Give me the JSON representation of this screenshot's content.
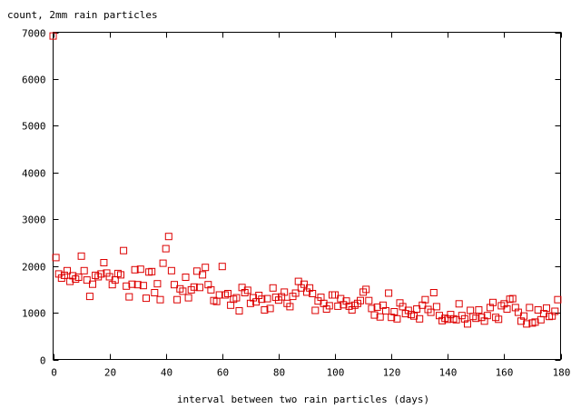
{
  "chart_data": {
    "type": "scatter",
    "title": "",
    "ylabel": "count, 2mm rain particles",
    "xlabel": "interval between two rain particles (days)",
    "xlim": [
      0,
      180
    ],
    "ylim": [
      0,
      7000
    ],
    "xticks": [
      0,
      20,
      40,
      60,
      80,
      100,
      120,
      140,
      160,
      180
    ],
    "yticks": [
      0,
      1000,
      2000,
      3000,
      4000,
      5000,
      6000,
      7000
    ],
    "grid": false,
    "marker": "open-square",
    "color": "#dd0000",
    "series": [
      {
        "points": [
          [
            0,
            6920
          ],
          [
            1,
            2180
          ],
          [
            2,
            1830
          ],
          [
            3,
            1740
          ],
          [
            4,
            1800
          ],
          [
            5,
            1900
          ],
          [
            6,
            1670
          ],
          [
            7,
            1790
          ],
          [
            8,
            1720
          ],
          [
            9,
            1760
          ],
          [
            10,
            2210
          ],
          [
            11,
            1900
          ],
          [
            12,
            1700
          ],
          [
            13,
            1350
          ],
          [
            14,
            1610
          ],
          [
            15,
            1800
          ],
          [
            16,
            1770
          ],
          [
            17,
            1830
          ],
          [
            18,
            2070
          ],
          [
            19,
            1850
          ],
          [
            20,
            1770
          ],
          [
            21,
            1600
          ],
          [
            22,
            1700
          ],
          [
            23,
            1840
          ],
          [
            24,
            1810
          ],
          [
            25,
            2330
          ],
          [
            26,
            1570
          ],
          [
            27,
            1340
          ],
          [
            28,
            1610
          ],
          [
            29,
            1920
          ],
          [
            30,
            1600
          ],
          [
            31,
            1930
          ],
          [
            32,
            1580
          ],
          [
            33,
            1310
          ],
          [
            34,
            1870
          ],
          [
            35,
            1880
          ],
          [
            36,
            1430
          ],
          [
            37,
            1620
          ],
          [
            38,
            1280
          ],
          [
            39,
            2060
          ],
          [
            40,
            2370
          ],
          [
            41,
            2630
          ],
          [
            42,
            1900
          ],
          [
            43,
            1600
          ],
          [
            44,
            1280
          ],
          [
            45,
            1510
          ],
          [
            46,
            1460
          ],
          [
            47,
            1760
          ],
          [
            48,
            1320
          ],
          [
            49,
            1490
          ],
          [
            50,
            1550
          ],
          [
            51,
            1890
          ],
          [
            52,
            1540
          ],
          [
            53,
            1810
          ],
          [
            54,
            1970
          ],
          [
            55,
            1600
          ],
          [
            56,
            1490
          ],
          [
            57,
            1260
          ],
          [
            58,
            1240
          ],
          [
            59,
            1380
          ],
          [
            60,
            1990
          ],
          [
            61,
            1380
          ],
          [
            62,
            1410
          ],
          [
            63,
            1160
          ],
          [
            64,
            1290
          ],
          [
            65,
            1320
          ],
          [
            66,
            1040
          ],
          [
            67,
            1540
          ],
          [
            68,
            1430
          ],
          [
            69,
            1480
          ],
          [
            70,
            1200
          ],
          [
            71,
            1320
          ],
          [
            72,
            1230
          ],
          [
            73,
            1370
          ],
          [
            74,
            1290
          ],
          [
            75,
            1060
          ],
          [
            76,
            1300
          ],
          [
            77,
            1090
          ],
          [
            78,
            1530
          ],
          [
            79,
            1330
          ],
          [
            80,
            1270
          ],
          [
            81,
            1340
          ],
          [
            82,
            1440
          ],
          [
            83,
            1200
          ],
          [
            84,
            1130
          ],
          [
            85,
            1350
          ],
          [
            86,
            1420
          ],
          [
            87,
            1670
          ],
          [
            88,
            1530
          ],
          [
            89,
            1610
          ],
          [
            90,
            1440
          ],
          [
            91,
            1530
          ],
          [
            92,
            1410
          ],
          [
            93,
            1050
          ],
          [
            94,
            1250
          ],
          [
            95,
            1330
          ],
          [
            96,
            1200
          ],
          [
            97,
            1080
          ],
          [
            98,
            1150
          ],
          [
            99,
            1380
          ],
          [
            100,
            1380
          ],
          [
            101,
            1140
          ],
          [
            102,
            1300
          ],
          [
            103,
            1170
          ],
          [
            104,
            1250
          ],
          [
            105,
            1140
          ],
          [
            106,
            1060
          ],
          [
            107,
            1160
          ],
          [
            108,
            1200
          ],
          [
            109,
            1260
          ],
          [
            110,
            1440
          ],
          [
            111,
            1500
          ],
          [
            112,
            1260
          ],
          [
            113,
            1090
          ],
          [
            114,
            950
          ],
          [
            115,
            1120
          ],
          [
            116,
            910
          ],
          [
            117,
            1160
          ],
          [
            118,
            1040
          ],
          [
            119,
            1420
          ],
          [
            120,
            900
          ],
          [
            121,
            1020
          ],
          [
            122,
            870
          ],
          [
            123,
            1210
          ],
          [
            124,
            1130
          ],
          [
            125,
            980
          ],
          [
            126,
            1050
          ],
          [
            127,
            960
          ],
          [
            128,
            930
          ],
          [
            129,
            1080
          ],
          [
            130,
            870
          ],
          [
            131,
            1160
          ],
          [
            132,
            1280
          ],
          [
            133,
            1070
          ],
          [
            134,
            1010
          ],
          [
            135,
            1430
          ],
          [
            136,
            1130
          ],
          [
            137,
            940
          ],
          [
            138,
            830
          ],
          [
            139,
            880
          ],
          [
            140,
            860
          ],
          [
            141,
            960
          ],
          [
            142,
            870
          ],
          [
            143,
            850
          ],
          [
            144,
            1190
          ],
          [
            145,
            940
          ],
          [
            146,
            870
          ],
          [
            147,
            760
          ],
          [
            148,
            1050
          ],
          [
            149,
            920
          ],
          [
            150,
            880
          ],
          [
            151,
            1060
          ],
          [
            152,
            900
          ],
          [
            153,
            820
          ],
          [
            154,
            940
          ],
          [
            155,
            1110
          ],
          [
            156,
            1220
          ],
          [
            157,
            900
          ],
          [
            158,
            860
          ],
          [
            159,
            1150
          ],
          [
            160,
            1190
          ],
          [
            161,
            1080
          ],
          [
            162,
            1290
          ],
          [
            163,
            1300
          ],
          [
            164,
            1110
          ],
          [
            165,
            1010
          ],
          [
            166,
            820
          ],
          [
            167,
            930
          ],
          [
            168,
            760
          ],
          [
            169,
            1110
          ],
          [
            170,
            780
          ],
          [
            171,
            800
          ],
          [
            172,
            1060
          ],
          [
            173,
            850
          ],
          [
            174,
            980
          ],
          [
            175,
            1100
          ],
          [
            176,
            920
          ],
          [
            177,
            930
          ],
          [
            178,
            1030
          ],
          [
            179,
            1280
          ]
        ]
      }
    ]
  }
}
